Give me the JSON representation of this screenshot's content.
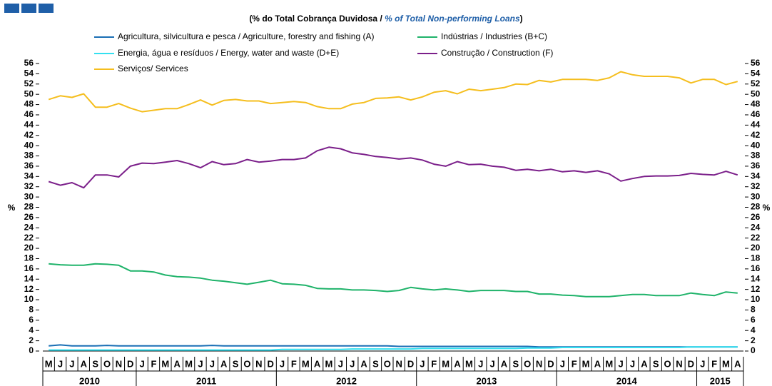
{
  "chart_data": {
    "type": "line",
    "title": "(% do Total Cobrança Duvidosa  /",
    "title_en": "% of Total Non-performing Loans",
    "title_end": ")",
    "ylabel": "%",
    "y2label": "%",
    "categories": [
      "M",
      "J",
      "J",
      "A",
      "S",
      "O",
      "N",
      "D",
      "J",
      "F",
      "M",
      "A",
      "M",
      "J",
      "J",
      "A",
      "S",
      "O",
      "N",
      "D",
      "J",
      "F",
      "M",
      "A",
      "M",
      "J",
      "J",
      "A",
      "S",
      "O",
      "N",
      "D",
      "J",
      "F",
      "M",
      "A",
      "M",
      "J",
      "J",
      "A",
      "S",
      "O",
      "N",
      "D",
      "J",
      "F",
      "M",
      "A",
      "M",
      "J",
      "J",
      "A",
      "S",
      "O",
      "N",
      "D",
      "J",
      "F",
      "M",
      "A"
    ],
    "years": [
      "2010",
      "2011",
      "2012",
      "2013",
      "2014",
      "2015"
    ],
    "ylim": [
      0,
      56
    ],
    "yticks": [
      0,
      2,
      4,
      6,
      8,
      10,
      12,
      14,
      16,
      18,
      20,
      22,
      24,
      26,
      28,
      30,
      32,
      34,
      36,
      38,
      40,
      42,
      44,
      46,
      48,
      50,
      52,
      54,
      56
    ],
    "y2lim": [
      0,
      56
    ],
    "y2ticks": [
      0,
      2,
      4,
      6,
      8,
      10,
      12,
      14,
      16,
      18,
      20,
      22,
      24,
      26,
      28,
      30,
      32,
      34,
      36,
      38,
      40,
      42,
      44,
      46,
      48,
      50,
      52,
      54,
      56
    ],
    "series": [
      {
        "name": "Agricultura, silvicultura e pesca / Agriculture, forestry and fishing (A)",
        "color": "#1a6fb5",
        "values": [
          1.0,
          1.2,
          1.0,
          1.0,
          1.0,
          1.1,
          1.0,
          1.0,
          1.0,
          1.0,
          1.0,
          1.0,
          1.0,
          1.0,
          1.1,
          1.0,
          1.0,
          1.0,
          1.0,
          1.0,
          1.0,
          1.0,
          1.0,
          1.0,
          1.0,
          1.0,
          1.0,
          1.0,
          1.0,
          1.0,
          0.9,
          0.9,
          0.9,
          0.9,
          0.9,
          0.9,
          0.9,
          0.9,
          0.9,
          0.9,
          0.9,
          0.9,
          0.8,
          0.8,
          0.8,
          0.8,
          0.8,
          0.8,
          0.8,
          0.8,
          0.8,
          0.8,
          0.8,
          0.8,
          0.8,
          0.8,
          0.8,
          0.8,
          0.8,
          0.8
        ]
      },
      {
        "name": "Indústrias / Industries (B+C)",
        "color": "#1fb36a",
        "values": [
          17,
          16.8,
          16.7,
          16.7,
          17,
          16.9,
          16.7,
          15.6,
          15.6,
          15.4,
          14.8,
          14.5,
          14.4,
          14.2,
          13.8,
          13.6,
          13.3,
          13,
          13.4,
          13.8,
          13.1,
          13,
          12.8,
          12.2,
          12.1,
          12.1,
          11.9,
          11.9,
          11.8,
          11.6,
          11.8,
          12.4,
          12.1,
          11.9,
          12.1,
          11.9,
          11.6,
          11.8,
          11.8,
          11.8,
          11.6,
          11.6,
          11.1,
          11.1,
          10.9,
          10.8,
          10.6,
          10.6,
          10.6,
          10.8,
          11,
          11,
          10.8,
          10.8,
          10.8,
          11.3,
          11,
          10.8,
          11.5,
          11.3
        ]
      },
      {
        "name": "Energia, água e resíduos / Energy, water and waste (D+E)",
        "color": "#33e0f0",
        "values": [
          0.2,
          0.2,
          0.2,
          0.2,
          0.2,
          0.2,
          0.2,
          0.2,
          0.2,
          0.2,
          0.2,
          0.2,
          0.2,
          0.2,
          0.2,
          0.2,
          0.2,
          0.2,
          0.2,
          0.2,
          0.3,
          0.3,
          0.3,
          0.3,
          0.3,
          0.3,
          0.4,
          0.4,
          0.4,
          0.4,
          0.4,
          0.4,
          0.5,
          0.5,
          0.5,
          0.5,
          0.5,
          0.5,
          0.5,
          0.5,
          0.5,
          0.6,
          0.6,
          0.6,
          0.7,
          0.7,
          0.7,
          0.7,
          0.7,
          0.7,
          0.7,
          0.7,
          0.7,
          0.7,
          0.7,
          0.8,
          0.8,
          0.8,
          0.8,
          0.8
        ]
      },
      {
        "name": "Construção / Construction  (F)",
        "color": "#7b1f8a",
        "values": [
          33,
          32.3,
          32.8,
          31.8,
          34.3,
          34.3,
          33.9,
          36,
          36.6,
          36.5,
          36.8,
          37.1,
          36.5,
          35.7,
          36.9,
          36.3,
          36.5,
          37.3,
          36.8,
          37,
          37.3,
          37.3,
          37.6,
          39,
          39.7,
          39.4,
          38.6,
          38.3,
          37.9,
          37.7,
          37.4,
          37.6,
          37.2,
          36.4,
          36,
          36.9,
          36.3,
          36.4,
          36,
          35.8,
          35.2,
          35.4,
          35.1,
          35.4,
          34.9,
          35.1,
          34.8,
          35.1,
          34.5,
          33.1,
          33.6,
          34,
          34.1,
          34.1,
          34.2,
          34.6,
          34.4,
          34.3,
          35,
          34.3
        ]
      },
      {
        "name": "Serviços/ Services",
        "color": "#f5be1e",
        "values": [
          49,
          49.7,
          49.4,
          50.1,
          47.5,
          47.5,
          48.2,
          47.3,
          46.6,
          46.9,
          47.2,
          47.2,
          48,
          48.9,
          47.9,
          48.8,
          49,
          48.7,
          48.7,
          48.2,
          48.4,
          48.6,
          48.4,
          47.6,
          47.2,
          47.2,
          48.1,
          48.4,
          49.2,
          49.3,
          49.5,
          48.9,
          49.5,
          50.4,
          50.7,
          50.1,
          51,
          50.7,
          51,
          51.3,
          52,
          51.9,
          52.7,
          52.4,
          52.9,
          52.9,
          52.9,
          52.7,
          53.2,
          54.4,
          53.8,
          53.5,
          53.5,
          53.5,
          53.2,
          52.2,
          52.9,
          52.9,
          51.9,
          52.5
        ]
      }
    ]
  }
}
